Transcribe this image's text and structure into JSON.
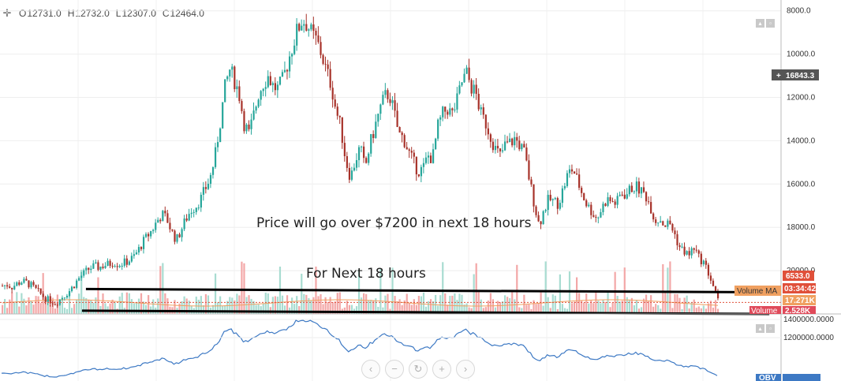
{
  "legend": {
    "open_label": "O",
    "open": "12731.0",
    "high_label": "H",
    "high": "12732.0",
    "low_label": "L",
    "low": "12307.0",
    "close_label": "C",
    "close": "12464.0"
  },
  "annotations": {
    "price_note": "Price will go over $7200 in next 18 hours",
    "time_note": "For Next 18 hours"
  },
  "price_axis": {
    "ticks": [
      "20000.0",
      "18000.0",
      "16000.0",
      "14000.0",
      "12000.0",
      "10000.0",
      "8000.0"
    ],
    "crosshair_value": "16843.3",
    "last_price": "6533.0",
    "countdown": "03:34:42",
    "volume_ma_label": "Volume MA",
    "volume_ma_value": "17.271K",
    "volume_label": "Volume",
    "volume_value": "2.528K"
  },
  "obv_axis": {
    "ticks": [
      "1400000.0000",
      "1200000.0000"
    ],
    "label": "OBV"
  },
  "nav_icons": [
    "chevron-left-icon",
    "zoom-out-icon",
    "reset-icon",
    "zoom-in-icon",
    "chevron-right-icon"
  ],
  "colors": {
    "up": "#26a69a",
    "down": "#a7322a",
    "volume_up": "#a8dcd1",
    "volume_down": "#f3a7a7",
    "volume_ma": "#f0a060",
    "obv_line": "#3d79c4",
    "last_price_tag": "#e0503a",
    "volume_ma_tag": "#f0a060",
    "volume_tag": "#e04a5a",
    "obv_tag": "#3d79c4",
    "crosshair_tag": "#555555"
  },
  "chart_data": {
    "type": "candlestick",
    "ylim": [
      6000,
      20500
    ],
    "y_ticks": [
      8000,
      10000,
      12000,
      14000,
      16000,
      18000,
      20000
    ],
    "closes": [
      7300,
      7350,
      7250,
      7400,
      7500,
      7450,
      7300,
      7100,
      6900,
      6700,
      6600,
      6500,
      6700,
      6900,
      7100,
      7400,
      7700,
      7900,
      8100,
      8200,
      8150,
      8250,
      8300,
      8400,
      8300,
      8350,
      8450,
      8600,
      8900,
      9300,
      9600,
      9900,
      10300,
      10600,
      10400,
      9800,
      9400,
      9900,
      10400,
      10800,
      11000,
      11300,
      11800,
      12300,
      13300,
      14800,
      16400,
      17300,
      16800,
      16100,
      14800,
      14300,
      15200,
      16200,
      16700,
      17000,
      16500,
      16400,
      16800,
      17600,
      18400,
      19100,
      19600,
      19400,
      18900,
      18600,
      18000,
      17200,
      16600,
      15400,
      14600,
      13100,
      12300,
      13100,
      13700,
      12700,
      13800,
      14600,
      15400,
      16000,
      16200,
      15300,
      14300,
      14100,
      13500,
      13000,
      12600,
      12700,
      13300,
      13200,
      14600,
      15200,
      15500,
      15200,
      15800,
      16700,
      17100,
      16500,
      16100,
      15200,
      14800,
      14200,
      13600,
      13300,
      13800,
      13900,
      14100,
      13800,
      13400,
      12200,
      11100,
      10100,
      10800,
      11300,
      11200,
      11100,
      11800,
      12500,
      12700,
      12100,
      11500,
      11000,
      10700,
      10400,
      10900,
      11300,
      11200,
      11100,
      11600,
      11500,
      11800,
      11900,
      11700,
      11500,
      11000,
      10300,
      10400,
      10100,
      10200,
      9700,
      9100,
      8900,
      8700,
      9100,
      8600,
      8400,
      7900,
      7300,
      6600
    ],
    "annotation_lines": [
      {
        "from": [
          0.11,
          7150
        ],
        "to": [
          0.985,
          7000
        ]
      },
      {
        "from": [
          0.105,
          6150
        ],
        "to": [
          0.985,
          6000
        ]
      }
    ],
    "obv_ticks": [
      1400000,
      1200000
    ]
  }
}
